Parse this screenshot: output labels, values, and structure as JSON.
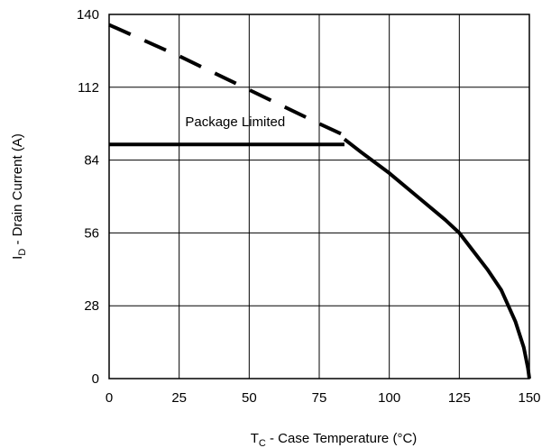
{
  "chart_data": {
    "type": "line",
    "title": "",
    "xlabel": {
      "main": "T",
      "sub": "C",
      "rest": " - Case Temperature (°C)"
    },
    "ylabel": {
      "main": "I",
      "sub": "D",
      "rest": " - Drain Current (A)"
    },
    "xlim": [
      0,
      150
    ],
    "ylim": [
      0,
      140
    ],
    "x_ticks": [
      0,
      25,
      50,
      75,
      100,
      125,
      150
    ],
    "y_ticks": [
      0,
      28,
      56,
      84,
      112,
      140
    ],
    "x_tick_labels": [
      "0",
      "25",
      "50",
      "75",
      "100",
      "125",
      "150"
    ],
    "y_tick_labels": [
      "0",
      "28",
      "56",
      84,
      "112",
      "140"
    ],
    "grid": true,
    "annotations": [
      {
        "text": "Package Limited",
        "x": 45,
        "y": 97
      }
    ],
    "series": [
      {
        "style": "dashed",
        "x": [
          0,
          25,
          50,
          75,
          85
        ],
        "y": [
          136,
          124,
          111,
          98,
          93
        ]
      },
      {
        "style": "solid",
        "x": [
          0,
          84
        ],
        "y": [
          90,
          90
        ]
      },
      {
        "style": "solid",
        "x": [
          84,
          90,
          100,
          110,
          120,
          125,
          130,
          135,
          140,
          145,
          148,
          149.5,
          150
        ],
        "y": [
          92,
          87,
          79,
          70,
          61,
          56,
          49,
          42,
          34,
          22,
          12,
          4,
          0
        ]
      }
    ]
  },
  "colors": {
    "line": "#000000",
    "grid": "#000000",
    "background": "#ffffff"
  }
}
